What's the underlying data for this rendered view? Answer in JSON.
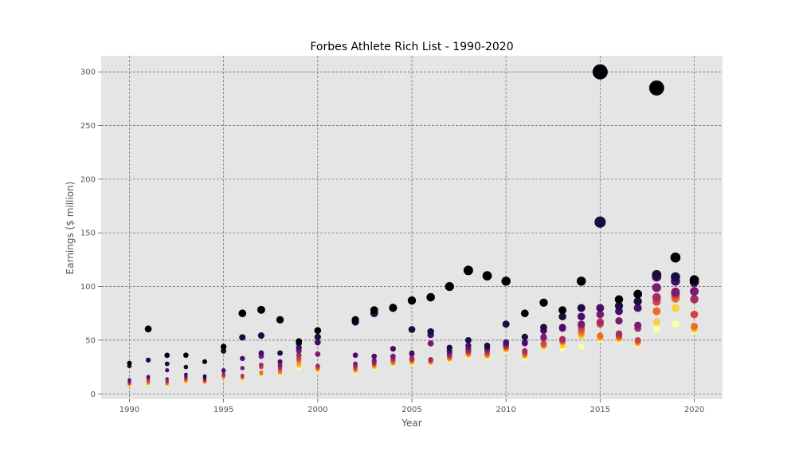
{
  "chart_data": {
    "type": "scatter",
    "title": "Forbes Athlete Rich List - 1990-2020",
    "xlabel": "Year",
    "ylabel": "Earnings ($ million)",
    "xlim": [
      1988.5,
      2021.5
    ],
    "ylim": [
      -5,
      315
    ],
    "x_ticks": [
      1990,
      1995,
      2000,
      2005,
      2010,
      2015,
      2020
    ],
    "y_ticks": [
      0,
      50,
      100,
      150,
      200,
      250,
      300
    ],
    "grid": true,
    "legend": "none",
    "colormap": "inferno (rank 1 = darkest/largest, rank 10 = lightest/smallest)",
    "series_by_year": [
      {
        "year": 1990,
        "earnings": [
          28.6,
          26,
          13,
          12,
          11,
          10,
          9.5,
          9,
          8.5,
          8
        ]
      },
      {
        "year": 1991,
        "earnings": [
          60.5,
          31.5,
          16,
          15,
          14,
          12,
          11,
          10,
          9.5,
          9
        ]
      },
      {
        "year": 1992,
        "earnings": [
          35.9,
          28,
          22,
          14,
          12,
          11,
          10,
          9.5,
          9,
          9
        ]
      },
      {
        "year": 1993,
        "earnings": [
          36,
          25,
          18,
          16,
          15,
          14,
          13,
          12,
          11,
          10
        ]
      },
      {
        "year": 1994,
        "earnings": [
          30,
          16.5,
          15,
          14,
          13,
          12,
          12,
          11,
          11,
          10
        ]
      },
      {
        "year": 1995,
        "earnings": [
          43.9,
          40,
          22,
          21,
          18,
          17,
          16,
          16,
          15,
          15
        ]
      },
      {
        "year": 1996,
        "earnings": [
          75,
          52.6,
          33,
          24,
          17,
          16,
          15.5,
          15,
          14,
          13
        ]
      },
      {
        "year": 1997,
        "earnings": [
          78.3,
          54.3,
          38,
          35,
          27,
          25,
          20,
          19,
          18,
          17
        ]
      },
      {
        "year": 1998,
        "earnings": [
          69,
          38,
          30,
          27,
          25,
          23,
          21,
          20,
          19,
          18
        ]
      },
      {
        "year": 1999,
        "earnings": [
          49,
          47,
          43,
          40,
          36,
          33,
          31,
          28,
          26,
          24
        ]
      },
      {
        "year": 2000,
        "earnings": [
          59,
          53,
          48,
          37,
          26,
          25,
          24,
          23,
          22,
          21
        ]
      },
      {
        "year": 2002,
        "earnings": [
          69,
          67,
          36,
          28,
          26,
          24,
          23,
          22,
          21,
          20
        ]
      },
      {
        "year": 2003,
        "earnings": [
          78,
          75,
          35,
          31,
          29,
          28,
          27,
          26,
          25,
          24
        ]
      },
      {
        "year": 2004,
        "earnings": [
          80.3,
          80,
          42,
          35,
          33,
          31,
          30,
          29,
          28,
          27
        ]
      },
      {
        "year": 2005,
        "earnings": [
          87,
          60,
          38,
          37,
          33,
          32,
          31,
          30,
          29,
          28
        ]
      },
      {
        "year": 2006,
        "earnings": [
          90,
          58,
          55,
          47,
          32,
          31,
          30,
          30,
          29,
          29
        ]
      },
      {
        "year": 2007,
        "earnings": [
          100,
          43,
          40,
          38,
          36,
          35,
          34,
          33,
          32,
          31
        ]
      },
      {
        "year": 2008,
        "earnings": [
          115,
          50,
          45,
          42,
          40,
          39,
          38,
          37,
          36,
          35
        ]
      },
      {
        "year": 2009,
        "earnings": [
          110,
          45,
          43,
          42,
          40,
          38,
          37,
          36,
          35,
          34
        ]
      },
      {
        "year": 2010,
        "earnings": [
          105,
          65,
          48,
          46,
          45,
          44,
          43,
          42,
          41,
          40
        ]
      },
      {
        "year": 2011,
        "earnings": [
          75,
          53,
          48,
          47,
          40,
          38,
          37,
          36,
          35,
          33
        ]
      },
      {
        "year": 2012,
        "earnings": [
          85,
          62,
          59,
          53,
          52,
          47,
          46,
          45,
          44,
          43
        ]
      },
      {
        "year": 2013,
        "earnings": [
          78,
          72,
          62,
          61,
          51,
          50,
          49,
          48,
          45,
          42
        ]
      },
      {
        "year": 2014,
        "earnings": [
          105,
          80,
          72,
          65,
          64,
          61,
          58,
          56,
          54,
          44
        ]
      },
      {
        "year": 2015,
        "earnings": [
          300,
          160,
          80,
          74,
          67,
          65,
          54,
          53,
          52,
          51
        ]
      },
      {
        "year": 2016,
        "earnings": [
          88,
          82,
          77,
          68,
          56,
          54,
          53,
          52,
          51,
          50
        ]
      },
      {
        "year": 2017,
        "earnings": [
          93,
          86.2,
          80,
          64,
          61,
          50,
          49,
          48,
          47,
          46
        ]
      },
      {
        "year": 2018,
        "earnings": [
          285,
          111,
          109,
          99,
          90,
          86,
          77,
          77,
          67,
          60
        ]
      },
      {
        "year": 2019,
        "earnings": [
          127,
          109,
          105,
          95,
          94,
          92,
          89,
          89,
          80,
          65
        ]
      },
      {
        "year": 2020,
        "earnings": [
          106.3,
          105,
          104,
          95.5,
          88.2,
          74,
          63,
          62,
          60,
          59
        ]
      }
    ]
  }
}
